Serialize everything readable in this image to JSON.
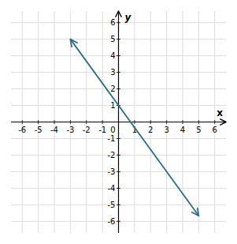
{
  "chart_data": {
    "type": "line",
    "xlabel": "x",
    "ylabel": "y",
    "x": [
      -3.0,
      5.0
    ],
    "values": [
      5.0,
      -5.666666666666667
    ],
    "color": "#2a6e8c",
    "xlim": [
      -6.7,
      6.7
    ],
    "ylim": [
      -6.7,
      6.7
    ],
    "xticks": [
      -6,
      -5,
      -4,
      -3,
      -2,
      -1,
      0,
      1,
      2,
      3,
      4,
      5,
      6
    ],
    "yticks": [
      -6,
      -5,
      -4,
      -3,
      -2,
      -1,
      1,
      2,
      3,
      4,
      5,
      6
    ],
    "grid": true
  }
}
